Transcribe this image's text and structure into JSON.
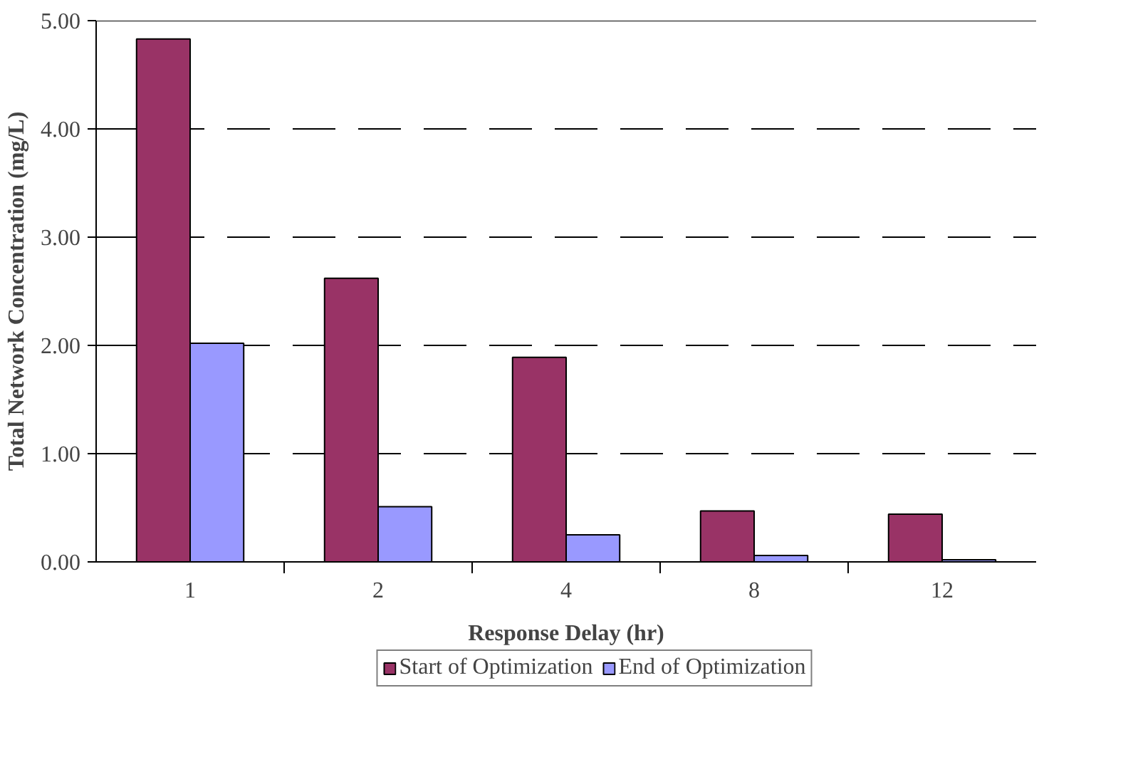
{
  "chart_data": {
    "type": "bar",
    "xlabel": "Response Delay (hr)",
    "ylabel": "Total Network Concentration (mg/L)",
    "categories": [
      "1",
      "2",
      "4",
      "8",
      "12"
    ],
    "series": [
      {
        "name": "Start of Optimization",
        "color": "#993366",
        "values": [
          4.83,
          2.62,
          1.89,
          0.47,
          0.44
        ]
      },
      {
        "name": "End of Optimization",
        "color": "#9999ff",
        "values": [
          2.02,
          0.51,
          0.25,
          0.06,
          0.02
        ]
      }
    ],
    "ylim": [
      0,
      5
    ],
    "yticks": [
      {
        "value": 0,
        "label": "0.00"
      },
      {
        "value": 1,
        "label": "1.00"
      },
      {
        "value": 2,
        "label": "2.00"
      },
      {
        "value": 3,
        "label": "3.00"
      },
      {
        "value": 4,
        "label": "4.00"
      },
      {
        "value": 5,
        "label": "5.00"
      }
    ],
    "grid": "y",
    "legend": "bottom",
    "line_style": "dashed"
  }
}
